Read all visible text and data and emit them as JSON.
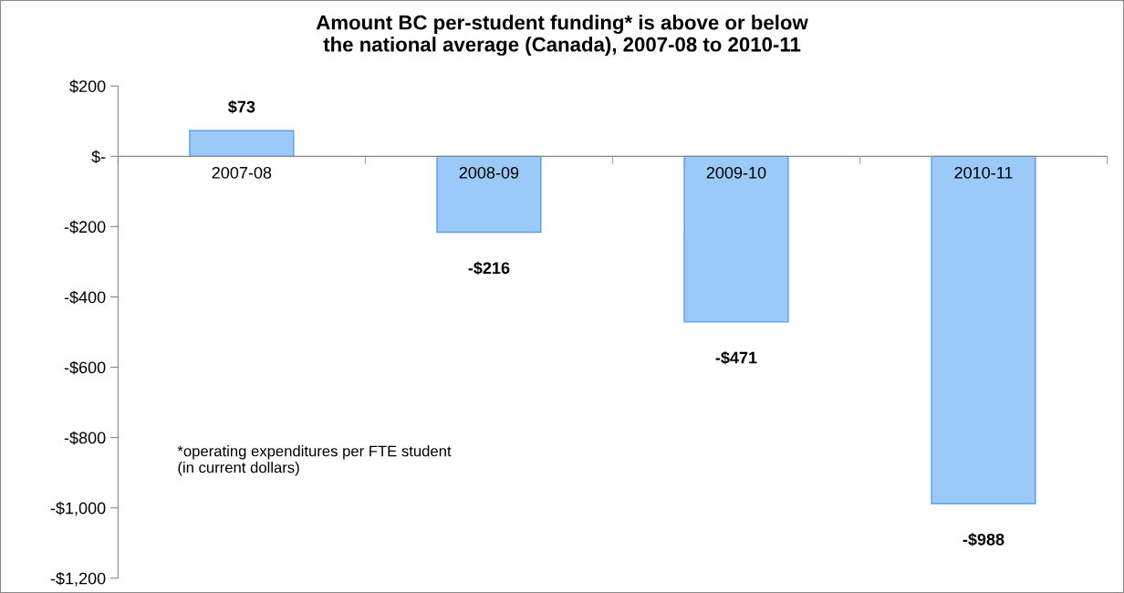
{
  "chart_data": {
    "type": "bar",
    "title": "Amount BC per-student funding* is above or below\nthe national average (Canada), 2007-08 to 2010-11",
    "categories": [
      "2007-08",
      "2008-09",
      "2009-10",
      "2010-11"
    ],
    "values": [
      73,
      -216,
      -471,
      -988
    ],
    "color": "#9ccaf8",
    "value_labels": [
      "$73",
      "-$216",
      "-$471",
      "-$988"
    ],
    "ylim": [
      -1200,
      200
    ],
    "yticks": [
      {
        "value": 200,
        "label": "$200"
      },
      {
        "value": 0,
        "label": "$-"
      },
      {
        "value": -200,
        "label": "-$200"
      },
      {
        "value": -400,
        "label": "-$400"
      },
      {
        "value": -600,
        "label": "-$600"
      },
      {
        "value": -800,
        "label": "-$800"
      },
      {
        "value": -1000,
        "label": "-$1,000"
      },
      {
        "value": -1200,
        "label": "-$1,200"
      }
    ],
    "annotations": [
      "*operating expenditures per FTE student\n(in current dollars)"
    ],
    "grid": false,
    "legend": false
  }
}
